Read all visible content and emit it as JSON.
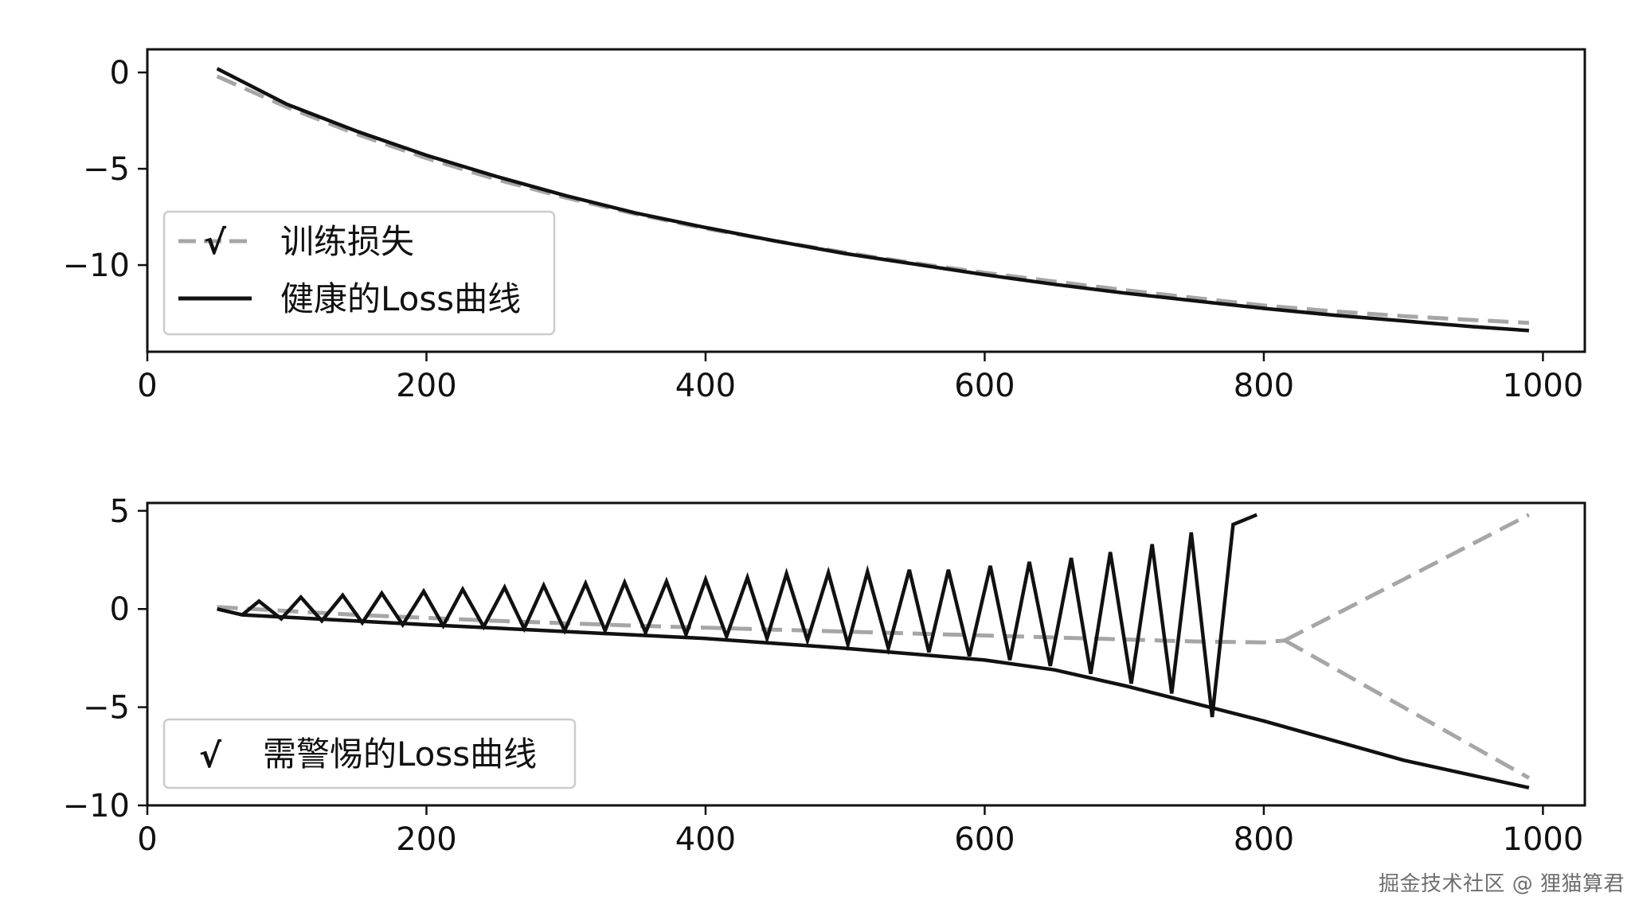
{
  "chart_data": [
    {
      "type": "line",
      "title": "",
      "xlabel": "",
      "ylabel": "",
      "xlim": [
        0,
        1030
      ],
      "ylim": [
        -14.5,
        1.2
      ],
      "xticks": [
        0,
        200,
        400,
        600,
        800,
        1000
      ],
      "yticks": [
        0,
        -5,
        -10
      ],
      "xtick_labels": [
        "0",
        "200",
        "400",
        "600",
        "800",
        "1000"
      ],
      "ytick_labels": [
        "0",
        "−5",
        "−10"
      ],
      "grid": false,
      "legend_position": "lower-left",
      "series": [
        {
          "name": "训练损失",
          "legend_marker": "√",
          "style": "dashed",
          "color": "#a6a6a6",
          "x": [
            50,
            100,
            150,
            200,
            250,
            300,
            350,
            400,
            450,
            500,
            550,
            600,
            650,
            700,
            750,
            800,
            850,
            900,
            950,
            990
          ],
          "y": [
            -0.2,
            -1.8,
            -3.2,
            -4.45,
            -5.55,
            -6.5,
            -7.35,
            -8.1,
            -8.75,
            -9.35,
            -9.9,
            -10.4,
            -10.85,
            -11.3,
            -11.7,
            -12.1,
            -12.4,
            -12.65,
            -12.85,
            -13.0
          ]
        },
        {
          "name": "健康的Loss曲线",
          "style": "solid",
          "color": "#111111",
          "x": [
            50,
            100,
            150,
            200,
            250,
            300,
            350,
            400,
            450,
            500,
            550,
            600,
            650,
            700,
            750,
            800,
            850,
            900,
            950,
            990
          ],
          "y": [
            0.2,
            -1.65,
            -3.05,
            -4.3,
            -5.4,
            -6.4,
            -7.3,
            -8.05,
            -8.75,
            -9.4,
            -9.95,
            -10.5,
            -11.0,
            -11.45,
            -11.85,
            -12.25,
            -12.6,
            -12.9,
            -13.2,
            -13.4
          ]
        }
      ]
    },
    {
      "type": "line",
      "title": "",
      "xlabel": "",
      "ylabel": "",
      "xlim": [
        0,
        1030
      ],
      "ylim": [
        -10,
        5.4
      ],
      "xticks": [
        0,
        200,
        400,
        600,
        800,
        1000
      ],
      "yticks": [
        5,
        0,
        -5,
        -10
      ],
      "xtick_labels": [
        "0",
        "200",
        "400",
        "600",
        "800",
        "1000"
      ],
      "ytick_labels": [
        "5",
        "0",
        "−5",
        "−10"
      ],
      "grid": false,
      "legend_position": "lower-left",
      "legend_label": "需警惕的Loss曲线",
      "legend_marker": "√",
      "series": [
        {
          "style": "dashed",
          "color": "#a6a6a6",
          "x": [
            50,
            150,
            250,
            350,
            450,
            550,
            650,
            750,
            800,
            815
          ],
          "y": [
            0.1,
            -0.3,
            -0.6,
            -0.85,
            -1.05,
            -1.25,
            -1.45,
            -1.65,
            -1.7,
            -1.6
          ]
        },
        {
          "style": "dashed",
          "color": "#a6a6a6",
          "x": [
            815,
            900,
            990
          ],
          "y": [
            -1.6,
            1.5,
            4.8
          ]
        },
        {
          "style": "dashed",
          "color": "#a6a6a6",
          "x": [
            815,
            900,
            990
          ],
          "y": [
            -1.6,
            -5.0,
            -8.6
          ]
        },
        {
          "style": "solid",
          "color": "#111111",
          "x": [
            50,
            68,
            200,
            300,
            400,
            500,
            600,
            650,
            700,
            750,
            800,
            850,
            900,
            990
          ],
          "y": [
            0.0,
            -0.3,
            -0.8,
            -1.15,
            -1.5,
            -2.0,
            -2.6,
            -3.1,
            -3.9,
            -4.8,
            -5.7,
            -6.7,
            -7.7,
            -9.1
          ]
        },
        {
          "style": "solid",
          "color": "#111111",
          "x": [
            68,
            80,
            96,
            110,
            125,
            140,
            154,
            168,
            183,
            198,
            212,
            226,
            241,
            256,
            270,
            284,
            299,
            314,
            328,
            342,
            357,
            372,
            386,
            400,
            415,
            430,
            444,
            458,
            473,
            488,
            502,
            516,
            531,
            546,
            560,
            574,
            589,
            604,
            618,
            632,
            647,
            662,
            676,
            690,
            705,
            720,
            734,
            748,
            763,
            778,
            795
          ],
          "y": [
            -0.3,
            0.4,
            -0.5,
            0.6,
            -0.6,
            0.7,
            -0.7,
            0.8,
            -0.8,
            0.9,
            -0.85,
            1.0,
            -0.9,
            1.1,
            -1.0,
            1.2,
            -1.1,
            1.3,
            -1.1,
            1.35,
            -1.2,
            1.4,
            -1.3,
            1.5,
            -1.4,
            1.6,
            -1.5,
            1.8,
            -1.6,
            1.85,
            -1.8,
            1.9,
            -2.0,
            2.0,
            -2.2,
            2.0,
            -2.4,
            2.2,
            -2.6,
            2.4,
            -2.9,
            2.6,
            -3.3,
            2.9,
            -3.8,
            3.3,
            -4.3,
            3.9,
            -5.5,
            4.3,
            4.8
          ]
        }
      ]
    }
  ],
  "watermark": "掘金技术社区 @ 狸猫算君"
}
